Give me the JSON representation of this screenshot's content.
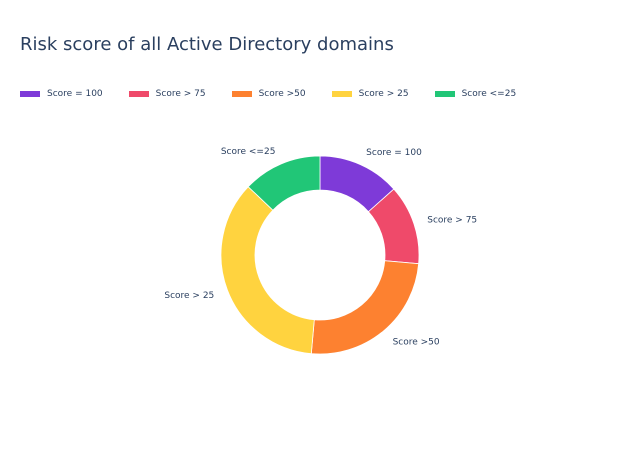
{
  "chart_data": {
    "type": "pie",
    "hole": true,
    "title": "Risk score of all Active Directory domains",
    "categories": [
      "Score = 100",
      "Score > 75",
      "Score >50",
      "Score > 25",
      "Score <=25"
    ],
    "values": [
      13.4,
      13.0,
      25.0,
      35.7,
      12.9
    ],
    "colors": [
      "#7e3ad8",
      "#ef4a6a",
      "#fd8130",
      "#ffd33f",
      "#21c677"
    ],
    "legend_position": "top-left",
    "direction": "clockwise",
    "start": "top"
  }
}
